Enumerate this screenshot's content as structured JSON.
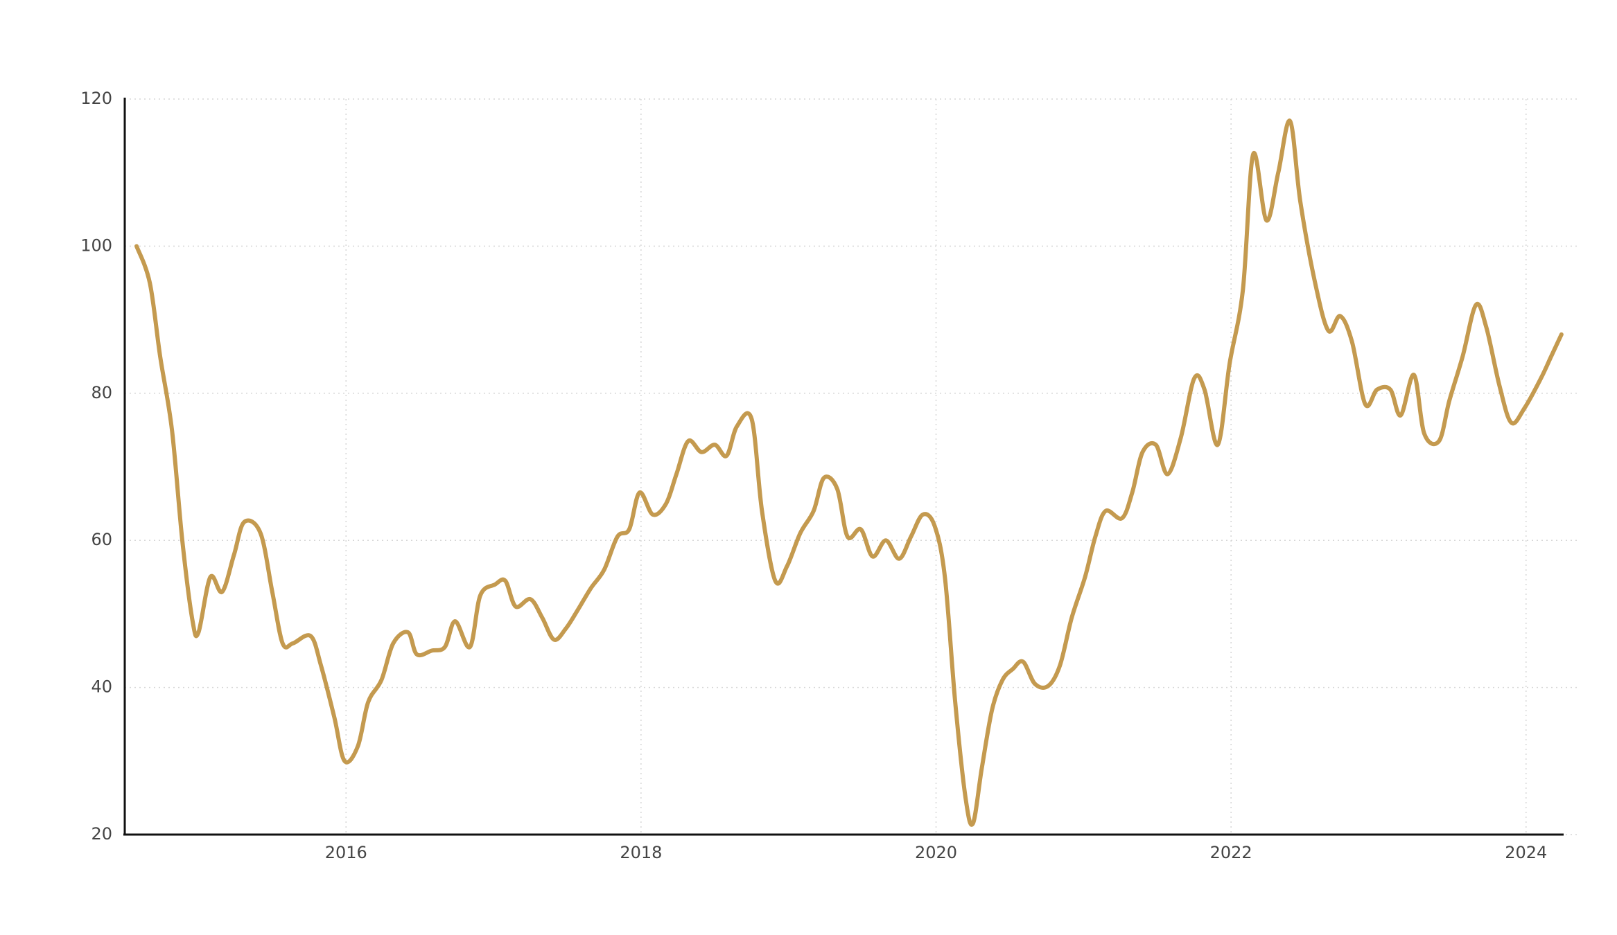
{
  "chart_data": {
    "type": "line",
    "x": [
      2014.58,
      2014.67,
      2014.74,
      2014.82,
      2014.89,
      2014.96,
      2015.0,
      2015.08,
      2015.16,
      2015.24,
      2015.31,
      2015.42,
      2015.5,
      2015.57,
      2015.64,
      2015.76,
      2015.83,
      2015.92,
      2015.99,
      2016.08,
      2016.15,
      2016.24,
      2016.32,
      2016.42,
      2016.48,
      2016.58,
      2016.67,
      2016.74,
      2016.84,
      2016.91,
      2017.01,
      2017.08,
      2017.15,
      2017.25,
      2017.33,
      2017.41,
      2017.49,
      2017.57,
      2017.66,
      2017.75,
      2017.84,
      2017.92,
      2017.99,
      2018.08,
      2018.17,
      2018.24,
      2018.32,
      2018.41,
      2018.5,
      2018.58,
      2018.65,
      2018.75,
      2018.82,
      2018.91,
      2018.99,
      2019.08,
      2019.17,
      2019.24,
      2019.33,
      2019.4,
      2019.49,
      2019.57,
      2019.66,
      2019.75,
      2019.83,
      2019.91,
      2019.99,
      2020.06,
      2020.13,
      2020.2,
      2020.25,
      2020.31,
      2020.38,
      2020.45,
      2020.52,
      2020.59,
      2020.67,
      2020.76,
      2020.84,
      2020.92,
      2021.01,
      2021.08,
      2021.15,
      2021.26,
      2021.33,
      2021.4,
      2021.49,
      2021.57,
      2021.66,
      2021.75,
      2021.82,
      2021.91,
      2021.99,
      2022.08,
      2022.15,
      2022.24,
      2022.32,
      2022.4,
      2022.47,
      2022.57,
      2022.66,
      2022.74,
      2022.82,
      2022.91,
      2022.99,
      2023.08,
      2023.15,
      2023.24,
      2023.31,
      2023.41,
      2023.48,
      2023.57,
      2023.66,
      2023.73,
      2023.82,
      2023.9,
      2023.99,
      2024.1,
      2024.17,
      2024.24
    ],
    "values": [
      100,
      95,
      85,
      75,
      60,
      49,
      47.5,
      55,
      53,
      58,
      62.5,
      61,
      53,
      46,
      46,
      47,
      43,
      36,
      30,
      32,
      38,
      41,
      46,
      47.5,
      44.5,
      45,
      45.5,
      49,
      45.5,
      52.5,
      54,
      54.5,
      51,
      52,
      49.5,
      46.5,
      48,
      50.5,
      53.5,
      56,
      60.5,
      61.5,
      66.5,
      63.5,
      65,
      69,
      73.5,
      72,
      73,
      71.5,
      75.5,
      76.5,
      64,
      54.5,
      56.5,
      61,
      64,
      68.5,
      67,
      60.5,
      61.5,
      57.8,
      60,
      57.5,
      60.5,
      63.5,
      62,
      55,
      38,
      25,
      21.5,
      29,
      37,
      41,
      42.5,
      43.5,
      40.5,
      40.2,
      43,
      49.5,
      55,
      60.5,
      64,
      63,
      66.5,
      72,
      73,
      69,
      74,
      82,
      80.5,
      73,
      84,
      94,
      112.5,
      103.5,
      110,
      117,
      106,
      95,
      88.5,
      90.5,
      87,
      78.5,
      80.5,
      80.5,
      77,
      82.5,
      74.5,
      73.5,
      79,
      85,
      92,
      89,
      81,
      76,
      78,
      82,
      85,
      88
    ],
    "color": "#c49a4f",
    "xlim": [
      2014.5,
      2024.25
    ],
    "xticks": [
      2016,
      2018,
      2020,
      2022,
      2024
    ],
    "ylim": [
      20,
      120
    ],
    "yticks": [
      20,
      40,
      60,
      80,
      100,
      120
    ],
    "grid": true
  }
}
